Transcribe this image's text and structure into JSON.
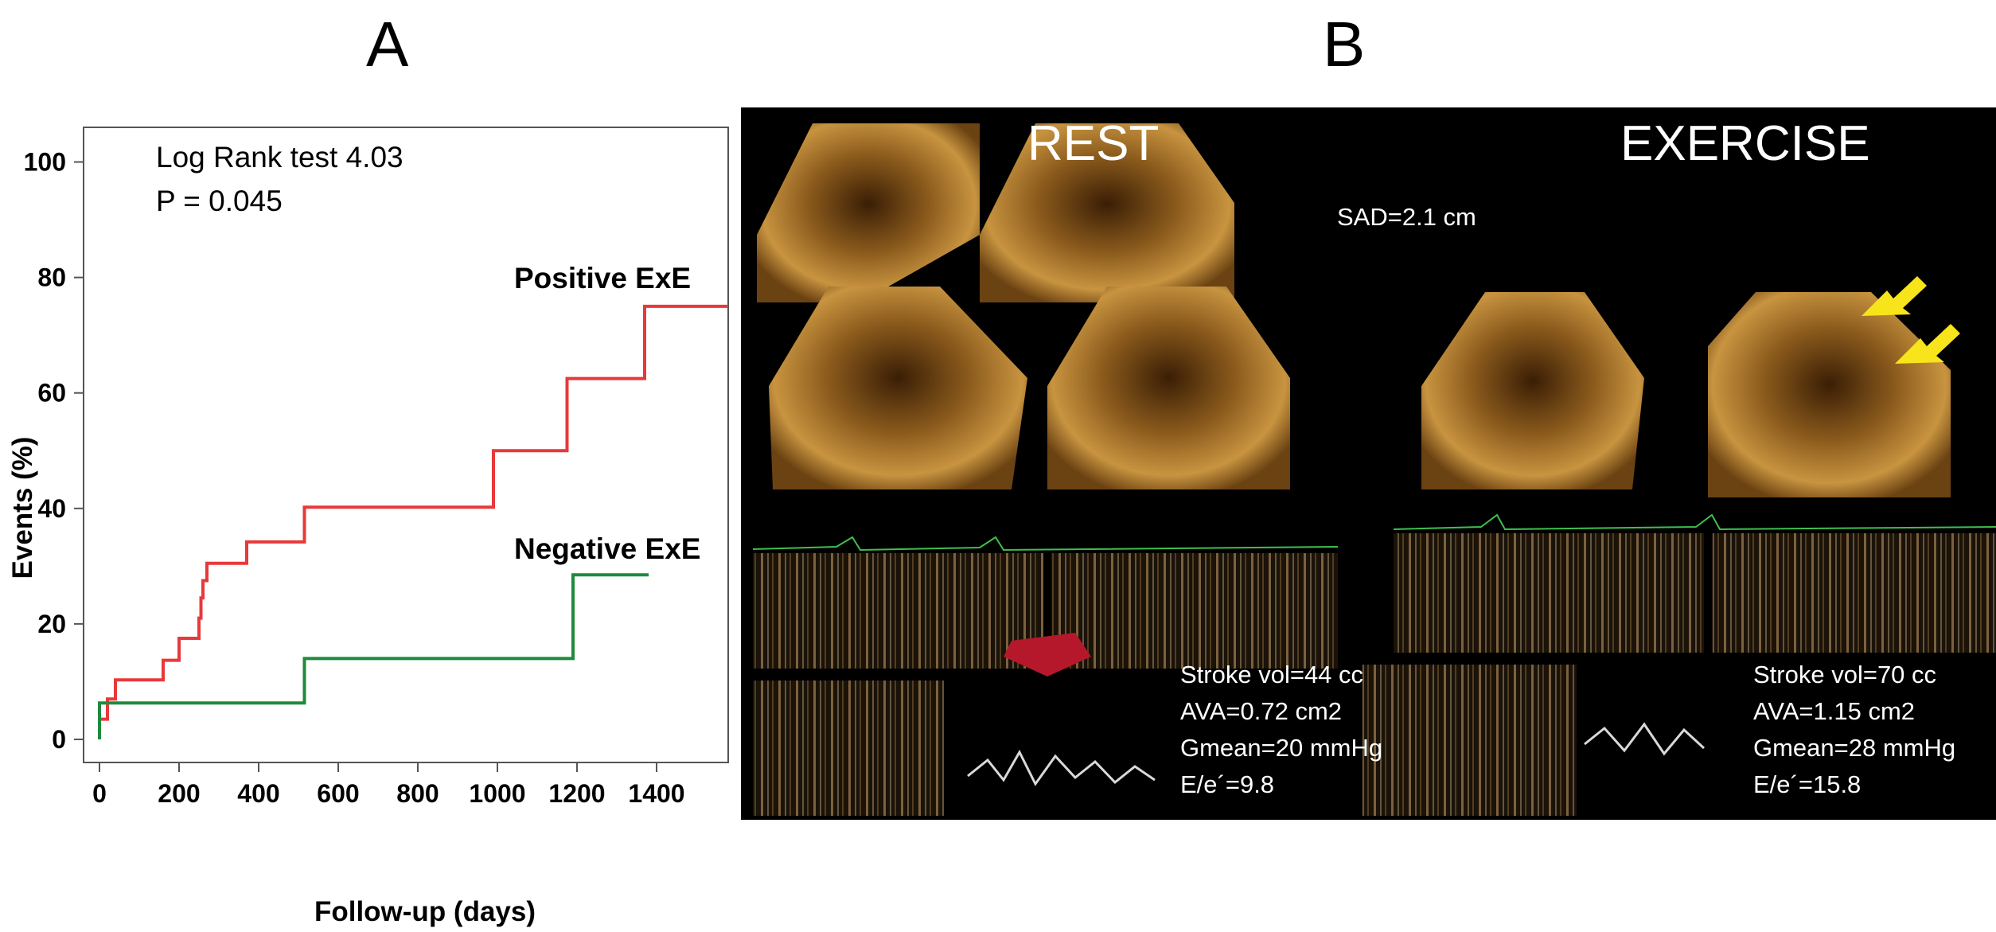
{
  "panel_labels": {
    "a": "A",
    "b": "B"
  },
  "colors": {
    "positive": "#e8393a",
    "negative": "#1f8a3d",
    "axis": "#555555"
  },
  "chart_data": {
    "type": "line",
    "step": true,
    "xlabel": "Follow-up  (days)",
    "ylabel": "Events (%)",
    "xlim": [
      -40,
      1580
    ],
    "ylim": [
      -4,
      106
    ],
    "xticks": [
      0,
      200,
      400,
      600,
      800,
      1000,
      1200,
      1400
    ],
    "yticks": [
      0,
      20,
      40,
      60,
      80,
      100
    ],
    "grid": false,
    "annotations": [
      "Log Rank test 4.03",
      "P = 0.045"
    ],
    "series": [
      {
        "name": "Positive ExE",
        "color": "#e8393a",
        "x": [
          0,
          0,
          20,
          20,
          40,
          40,
          160,
          160,
          200,
          200,
          250,
          250,
          255,
          255,
          260,
          260,
          270,
          270,
          370,
          370,
          515,
          515,
          990,
          990,
          1175,
          1175,
          1370,
          1370,
          1580
        ],
        "y": [
          0,
          3.5,
          3.5,
          7,
          7,
          10.3,
          10.3,
          13.7,
          13.7,
          17.5,
          17.5,
          21,
          21,
          24.5,
          24.5,
          27.5,
          27.5,
          30.5,
          30.5,
          34.2,
          34.2,
          40.2,
          40.2,
          50,
          50,
          62.5,
          62.5,
          75,
          75
        ]
      },
      {
        "name": "Negative ExE",
        "color": "#1f8a3d",
        "x": [
          0,
          0,
          515,
          515,
          1190,
          1190,
          1380
        ],
        "y": [
          0,
          6.3,
          6.3,
          14,
          14,
          28.5,
          28.5
        ]
      }
    ]
  },
  "figure_b": {
    "rest_label": "REST",
    "exercise_label": "EXERCISE",
    "sad_label": "SAD=2.1 cm",
    "rest_measures": [
      "Stroke vol=44 cc",
      "AVA=0.72 cm2",
      "Gmean=20 mmHg",
      "E/e´=9.8"
    ],
    "exercise_measures": [
      "Stroke vol=70 cc",
      "AVA=1.15 cm2",
      "Gmean=28 mmHg",
      "E/e´=15.8"
    ]
  }
}
